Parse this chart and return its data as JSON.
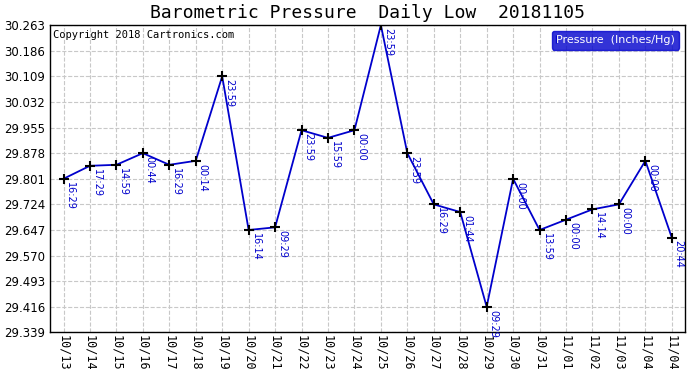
{
  "title": "Barometric Pressure  Daily Low  20181105",
  "copyright": "Copyright 2018 Cartronics.com",
  "legend_label": "Pressure  (Inches/Hg)",
  "line_color": "#0000cc",
  "marker_color": "#000000",
  "bg_color": "#ffffff",
  "grid_color": "#c8c8c8",
  "x_labels": [
    "10/13",
    "10/14",
    "10/15",
    "10/16",
    "10/17",
    "10/18",
    "10/19",
    "10/20",
    "10/21",
    "10/22",
    "10/23",
    "10/24",
    "10/25",
    "10/26",
    "10/27",
    "10/28",
    "10/29",
    "10/30",
    "10/31",
    "11/01",
    "11/02",
    "11/03",
    "11/04",
    "11/04"
  ],
  "data_points": [
    {
      "xi": 0,
      "y": 29.801,
      "label": "16:29"
    },
    {
      "xi": 1,
      "y": 29.84,
      "label": "17:29"
    },
    {
      "xi": 2,
      "y": 29.843,
      "label": "14:59"
    },
    {
      "xi": 3,
      "y": 29.878,
      "label": "00:44"
    },
    {
      "xi": 4,
      "y": 29.843,
      "label": "16:29"
    },
    {
      "xi": 5,
      "y": 29.855,
      "label": "00:14"
    },
    {
      "xi": 6,
      "y": 30.109,
      "label": "23:59"
    },
    {
      "xi": 7,
      "y": 29.647,
      "label": "16:14"
    },
    {
      "xi": 8,
      "y": 29.655,
      "label": "09:29"
    },
    {
      "xi": 9,
      "y": 29.947,
      "label": "23:59"
    },
    {
      "xi": 10,
      "y": 29.924,
      "label": "15:59"
    },
    {
      "xi": 11,
      "y": 29.947,
      "label": "00:00"
    },
    {
      "xi": 12,
      "y": 30.263,
      "label": "23:59"
    },
    {
      "xi": 13,
      "y": 29.878,
      "label": "23:59"
    },
    {
      "xi": 14,
      "y": 29.724,
      "label": "16:29"
    },
    {
      "xi": 15,
      "y": 29.701,
      "label": "01:44"
    },
    {
      "xi": 16,
      "y": 29.416,
      "label": "09:29"
    },
    {
      "xi": 17,
      "y": 29.801,
      "label": "00:00"
    },
    {
      "xi": 18,
      "y": 29.647,
      "label": "13:59"
    },
    {
      "xi": 19,
      "y": 29.678,
      "label": "00:00"
    },
    {
      "xi": 20,
      "y": 29.709,
      "label": "14:14"
    },
    {
      "xi": 21,
      "y": 29.724,
      "label": "00:00"
    },
    {
      "xi": 22,
      "y": 29.855,
      "label": "00:00"
    },
    {
      "xi": 23,
      "y": 29.624,
      "label": "20:44"
    }
  ],
  "ylim": [
    29.339,
    30.263
  ],
  "yticks": [
    29.339,
    29.416,
    29.493,
    29.57,
    29.647,
    29.724,
    29.801,
    29.878,
    29.955,
    30.032,
    30.109,
    30.186,
    30.263
  ],
  "title_fontsize": 13,
  "label_fontsize": 7,
  "tick_fontsize": 8.5,
  "copyright_fontsize": 7.5
}
